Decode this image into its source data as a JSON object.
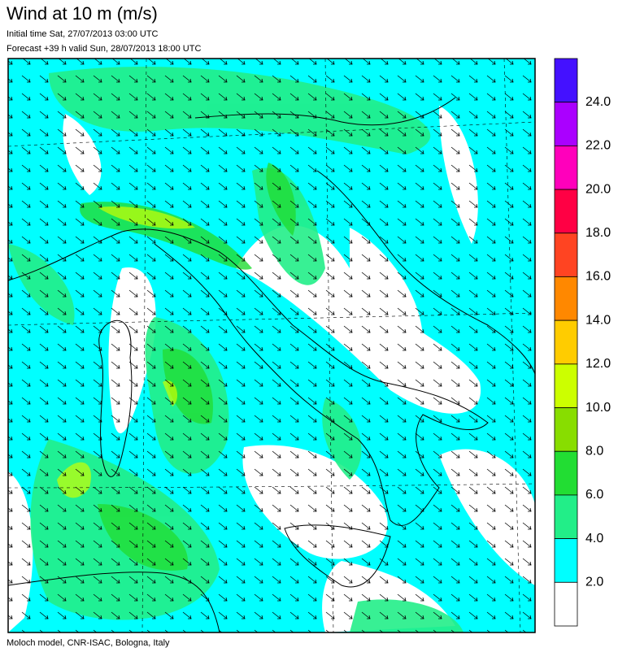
{
  "header": {
    "title": "Wind at 10 m (m/s)",
    "initial_time": "Initial time  Sat, 27/07/2013 03:00 UTC",
    "forecast": "Forecast +39 h valid  Sun, 28/07/2013 18:00 UTC"
  },
  "colorbar": {
    "colors": [
      "#4411ff",
      "#aa00ff",
      "#ff00bb",
      "#ff0044",
      "#ff4422",
      "#ff8800",
      "#ffcc00",
      "#ccff00",
      "#88dd00",
      "#22dd33",
      "#22ee88",
      "#00ffff",
      "#ffffff"
    ],
    "labels": [
      "24.0",
      "22.0",
      "20.0",
      "18.0",
      "16.0",
      "14.0",
      "12.0",
      "10.0",
      "8.0",
      "6.0",
      "4.0",
      "2.0"
    ]
  },
  "footer": "Moloch model, CNR-ISAC, Bologna, Italy"
}
